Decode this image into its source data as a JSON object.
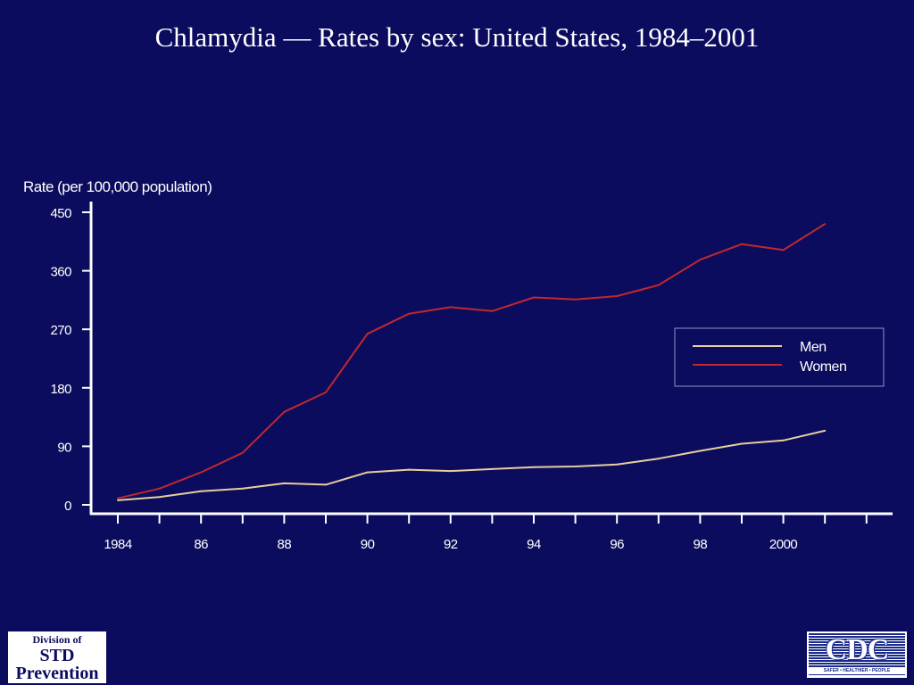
{
  "chart_data": {
    "type": "line",
    "title": "Chlamydia — Rates by sex: United States, 1984–2001",
    "ylabel": "Rate (per 100,000 population)",
    "xlabel": "",
    "x": [
      1984,
      1985,
      1986,
      1987,
      1988,
      1989,
      1990,
      1991,
      1992,
      1993,
      1994,
      1995,
      1996,
      1997,
      1998,
      1999,
      2000,
      2001
    ],
    "xticks": [
      1984,
      1985,
      1986,
      1987,
      1988,
      1989,
      1990,
      1991,
      1992,
      1993,
      1994,
      1995,
      1996,
      1997,
      1998,
      1999,
      2000,
      2001,
      2002
    ],
    "xtick_labels": [
      {
        "x": 1984,
        "label": "1984"
      },
      {
        "x": 1986,
        "label": "86"
      },
      {
        "x": 1988,
        "label": "88"
      },
      {
        "x": 1990,
        "label": "90"
      },
      {
        "x": 1992,
        "label": "92"
      },
      {
        "x": 1994,
        "label": "94"
      },
      {
        "x": 1996,
        "label": "96"
      },
      {
        "x": 1998,
        "label": "98"
      },
      {
        "x": 2000,
        "label": "2000"
      }
    ],
    "xlim": [
      1983.6,
      2002.6
    ],
    "ylim": [
      0,
      450
    ],
    "yticks": [
      0,
      90,
      180,
      270,
      360,
      450
    ],
    "ytick_labels": [
      "0",
      "90",
      "180",
      "270",
      "360",
      "450"
    ],
    "series": [
      {
        "name": "Men",
        "color": "#e6cf9c",
        "values": [
          7,
          12,
          21,
          25,
          33,
          31,
          50,
          54,
          52,
          55,
          58,
          59,
          62,
          71,
          83,
          94,
          99,
          114
        ]
      },
      {
        "name": "Women",
        "color": "#c0282e",
        "values": [
          10,
          25,
          50,
          80,
          143,
          173,
          263,
          294,
          304,
          298,
          319,
          316,
          321,
          338,
          377,
          401,
          392,
          432
        ]
      }
    ],
    "legend": "right",
    "grid": false
  },
  "logos": {
    "std_line1": "Division of",
    "std_line2": "STD",
    "std_line3": "Prevention",
    "cdc_mark": "CDC",
    "cdc_tagline": "SAFER • HEALTHIER • PEOPLE"
  }
}
